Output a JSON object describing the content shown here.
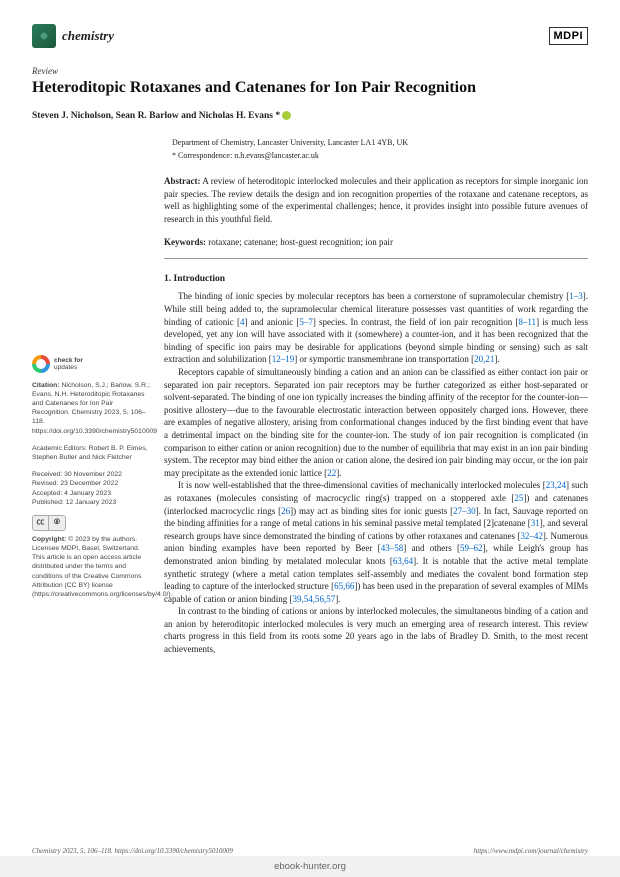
{
  "header": {
    "journal_name": "chemistry",
    "publisher_logo": "MDPI"
  },
  "article": {
    "type": "Review",
    "title": "Heteroditopic Rotaxanes and Catenanes for Ion Pair Recognition",
    "authors": "Steven J. Nicholson, Sean R. Barlow and Nicholas H. Evans *",
    "affiliation": "Department of Chemistry, Lancaster University, Lancaster LA1 4YB, UK",
    "correspondence": "*  Correspondence: n.h.evans@lancaster.ac.uk",
    "abstract_label": "Abstract:",
    "abstract_text": " A review of heteroditopic interlocked molecules and their application as receptors for simple inorganic ion pair species. The review details the design and ion recognition properties of the rotaxane and catenane receptors, as well as highlighting some of the experimental challenges; hence, it provides insight into possible future avenues of research in this youthful field.",
    "keywords_label": "Keywords:",
    "keywords_text": " rotaxane; catenane; host-guest recognition; ion pair"
  },
  "section1": {
    "heading": "1. Introduction",
    "p1a": "The binding of ionic species by molecular receptors has been a cornerstone of supramolecular chemistry [",
    "p1r1": "1–3",
    "p1b": "]. While still being added to, the supramolecular chemical literature possesses vast quantities of work regarding the binding of cationic [",
    "p1r2": "4",
    "p1c": "] and anionic [",
    "p1r3": "5–7",
    "p1d": "] species. In contrast, the field of ion pair recognition [",
    "p1r4": "8–11",
    "p1e": "] is much less developed, yet any ion will have associated with it (somewhere) a counter-ion, and it has been recognized that the binding of specific ion pairs may be desirable for applications (beyond simple binding or sensing) such as salt extraction and solubilization [",
    "p1r5": "12–19",
    "p1f": "] or symportic transmembrane ion transportation [",
    "p1r6": "20,21",
    "p1g": "].",
    "p2a": "Receptors capable of simultaneously binding a cation and an anion can be classified as either contact ion pair or separated ion pair receptors. Separated ion pair receptors may be further categorized as either host-separated or solvent-separated. The binding of one ion typically increases the binding affinity of the receptor for the counter-ion—positive allostery—due to the favourable electrostatic interaction between oppositely charged ions. However, there are examples of negative allostery, arising from conformational changes induced by the first binding event that have a detrimental impact on the binding site for the counter-ion. The study of ion pair recognition is complicated (in comparison to either cation or anion recognition) due to the number of equilibria that may exist in an ion pair binding system. The receptor may bind either the anion or cation alone, the desired ion pair binding may occur, or the ion pair may precipitate as the extended ionic lattice [",
    "p2r1": "22",
    "p2b": "].",
    "p3a": "It is now well-established that the three-dimensional cavities of mechanically interlocked molecules [",
    "p3r1": "23,24",
    "p3b": "] such as rotaxanes (molecules consisting of macrocyclic ring(s) trapped on a stoppered axle [",
    "p3r2": "25",
    "p3c": "]) and catenanes (interlocked macrocyclic rings [",
    "p3r3": "26",
    "p3d": "]) may act as binding sites for ionic guests [",
    "p3r4": "27–30",
    "p3e": "]. In fact, Sauvage reported on the binding affinities for a range of metal cations in his seminal passive metal templated [2]catenane [",
    "p3r5": "31",
    "p3f": "], and several research groups have since demonstrated the binding of cations by other rotaxanes and catenanes [",
    "p3r6": "32–42",
    "p3g": "]. Numerous anion binding examples have been reported by Beer [",
    "p3r7": "43–58",
    "p3h": "] and others [",
    "p3r8": "59–62",
    "p3i": "], while Leigh's group has demonstrated anion binding by metalated molecular knots [",
    "p3r9": "63,64",
    "p3j": "]. It is notable that the active metal template synthetic strategy (where a metal cation templates self-assembly and mediates the covalent bond formation step leading to capture of the interlocked structure [",
    "p3r10": "65,66",
    "p3k": "]) has been used in the preparation of several examples of MIMs capable of cation or anion binding [",
    "p3r11": "39,54,56,57",
    "p3l": "].",
    "p4": "In contrast to the binding of cations or anions by interlocked molecules, the simultaneous binding of a cation and an anion by heteroditopic interlocked molecules is very much an emerging area of research interest. This review charts progress in this field from its roots some 20 years ago in the labs of Bradley D. Smith, to the most recent achievements,"
  },
  "sidebar": {
    "check_l1": "check for",
    "check_l2": "updates",
    "citation_label": "Citation:",
    "citation_text": " Nicholson, S.J.; Barlow, S.R.; Evans, N.H. Heteroditopic Rotaxanes and Catenanes for Ion Pair Recognition. Chemistry 2023, 5, 106–118. https://doi.org/10.3390/chemistry5010009",
    "editors_label": "Academic Editors:",
    "editors_text": " Robert B. P. Elmes, Stephen Butler and Nick Fletcher",
    "received": "Received: 30 November 2022",
    "revised": "Revised: 23 December 2022",
    "accepted": "Accepted: 4 January 2023",
    "published": "Published: 12 January 2023",
    "copyright_label": "Copyright:",
    "copyright_text": " © 2023 by the authors. Licensee MDPI, Basel, Switzerland. This article is an open access article distributed under the terms and conditions of the Creative Commons Attribution (CC BY) license (https://creativecommons.org/licenses/by/4.0/)."
  },
  "page_footer": {
    "left": "Chemistry 2023, 5, 106–118. https://doi.org/10.3390/chemistry5010009",
    "right": "https://www.mdpi.com/journal/chemistry"
  },
  "site_footer": {
    "url": "ebook-hunter.org"
  }
}
